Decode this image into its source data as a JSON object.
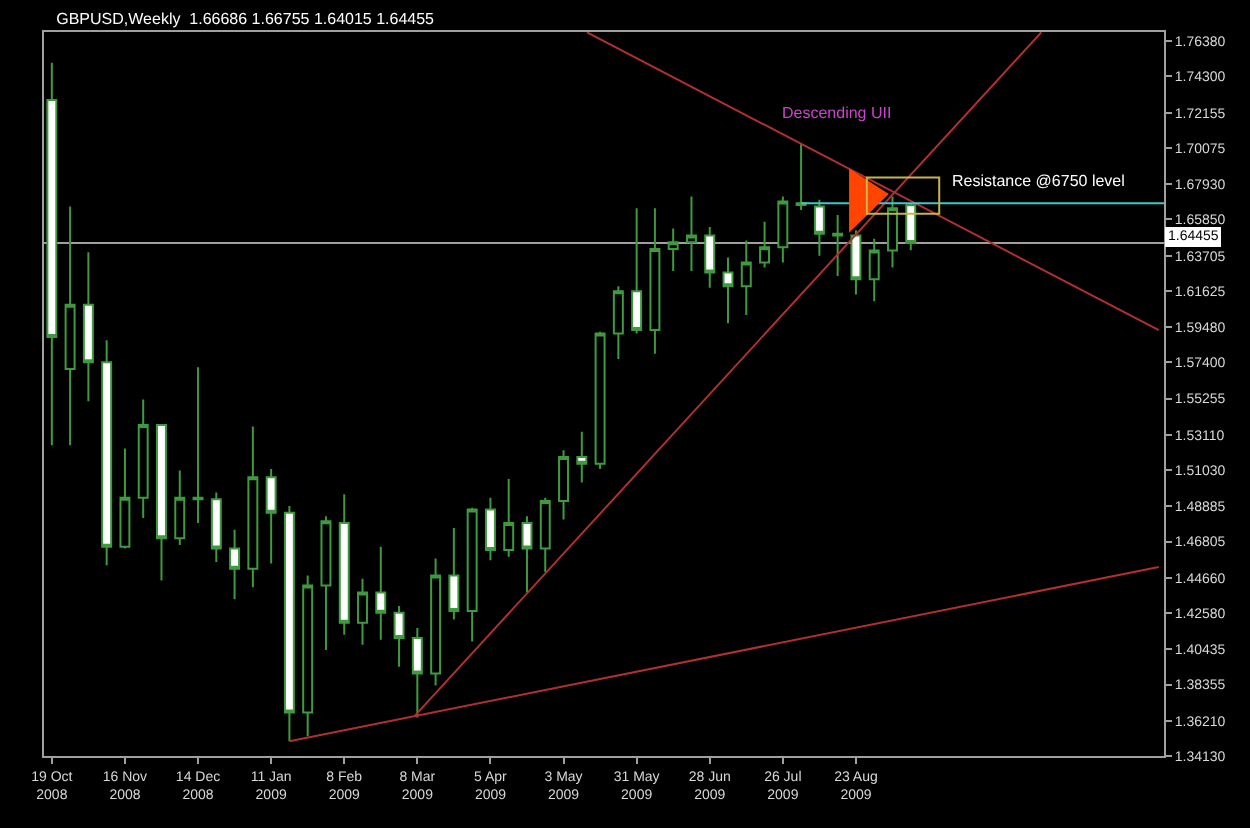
{
  "chart_data": {
    "type": "candlestick",
    "title": "GBPUSD,Weekly  1.66686 1.66755 1.64015 1.64455",
    "color": "#3f9a3f",
    "x": [
      "2008-10-19",
      "2008-10-26",
      "2008-11-02",
      "2008-11-09",
      "2008-11-16",
      "2008-11-23",
      "2008-11-30",
      "2008-12-07",
      "2008-12-14",
      "2008-12-21",
      "2008-12-28",
      "2009-01-04",
      "2009-01-11",
      "2009-01-18",
      "2009-01-25",
      "2009-02-01",
      "2009-02-08",
      "2009-02-15",
      "2009-02-22",
      "2009-03-01",
      "2009-03-08",
      "2009-03-15",
      "2009-03-22",
      "2009-03-29",
      "2009-04-05",
      "2009-04-12",
      "2009-04-19",
      "2009-04-26",
      "2009-05-03",
      "2009-05-10",
      "2009-05-17",
      "2009-05-24",
      "2009-05-31",
      "2009-06-07",
      "2009-06-14",
      "2009-06-21",
      "2009-06-28",
      "2009-07-05",
      "2009-07-12",
      "2009-07-19",
      "2009-07-26",
      "2009-08-02",
      "2009-08-09",
      "2009-08-16",
      "2009-08-23",
      "2009-08-30",
      "2009-09-06",
      "2009-09-13"
    ],
    "ohlc": [
      [
        1.729,
        1.751,
        1.525,
        1.589
      ],
      [
        1.57,
        1.666,
        1.525,
        1.608
      ],
      [
        1.608,
        1.639,
        1.551,
        1.574
      ],
      [
        1.574,
        1.587,
        1.454,
        1.465
      ],
      [
        1.465,
        1.523,
        1.464,
        1.494
      ],
      [
        1.494,
        1.552,
        1.482,
        1.537
      ],
      [
        1.537,
        1.537,
        1.445,
        1.47
      ],
      [
        1.47,
        1.51,
        1.466,
        1.494
      ],
      [
        1.493,
        1.571,
        1.479,
        1.494
      ],
      [
        1.493,
        1.497,
        1.456,
        1.464
      ],
      [
        1.464,
        1.475,
        1.434,
        1.452
      ],
      [
        1.452,
        1.536,
        1.441,
        1.506
      ],
      [
        1.506,
        1.511,
        1.455,
        1.485
      ],
      [
        1.485,
        1.489,
        1.35,
        1.367
      ],
      [
        1.367,
        1.448,
        1.353,
        1.442
      ],
      [
        1.442,
        1.483,
        1.404,
        1.48
      ],
      [
        1.479,
        1.496,
        1.413,
        1.42
      ],
      [
        1.42,
        1.446,
        1.407,
        1.438
      ],
      [
        1.438,
        1.465,
        1.41,
        1.426
      ],
      [
        1.426,
        1.43,
        1.394,
        1.411
      ],
      [
        1.411,
        1.417,
        1.364,
        1.39
      ],
      [
        1.39,
        1.458,
        1.383,
        1.448
      ],
      [
        1.448,
        1.476,
        1.422,
        1.427
      ],
      [
        1.427,
        1.488,
        1.409,
        1.487
      ],
      [
        1.487,
        1.494,
        1.457,
        1.463
      ],
      [
        1.463,
        1.505,
        1.459,
        1.479
      ],
      [
        1.479,
        1.483,
        1.438,
        1.464
      ],
      [
        1.464,
        1.494,
        1.45,
        1.492
      ],
      [
        1.492,
        1.522,
        1.481,
        1.518
      ],
      [
        1.518,
        1.533,
        1.503,
        1.514
      ],
      [
        1.514,
        1.592,
        1.511,
        1.591
      ],
      [
        1.591,
        1.619,
        1.576,
        1.616
      ],
      [
        1.616,
        1.665,
        1.591,
        1.593
      ],
      [
        1.593,
        1.665,
        1.579,
        1.641
      ],
      [
        1.641,
        1.653,
        1.628,
        1.645
      ],
      [
        1.645,
        1.672,
        1.628,
        1.649
      ],
      [
        1.649,
        1.654,
        1.618,
        1.627
      ],
      [
        1.627,
        1.636,
        1.597,
        1.619
      ],
      [
        1.619,
        1.646,
        1.602,
        1.633
      ],
      [
        1.633,
        1.657,
        1.63,
        1.642
      ],
      [
        1.642,
        1.672,
        1.633,
        1.669
      ],
      [
        1.667,
        1.703,
        1.664,
        1.668
      ],
      [
        1.666,
        1.67,
        1.637,
        1.65
      ],
      [
        1.649,
        1.661,
        1.625,
        1.65
      ],
      [
        1.649,
        1.652,
        1.614,
        1.623
      ],
      [
        1.623,
        1.647,
        1.61,
        1.64
      ],
      [
        1.64,
        1.672,
        1.63,
        1.665
      ],
      [
        1.66686,
        1.66755,
        1.64015,
        1.64455
      ]
    ],
    "series": [
      {
        "type": "line",
        "color": "#b03030",
        "x": [
          "2009-05-12",
          "2009-12-17"
        ],
        "values": [
          1.769,
          1.593
        ]
      },
      {
        "type": "line",
        "color": "#b03030",
        "x": [
          "2009-03-07",
          "2009-11-02"
        ],
        "values": [
          1.365,
          1.769
        ]
      },
      {
        "type": "line",
        "color": "#b03030",
        "x": [
          "2009-01-18",
          "2009-12-17"
        ],
        "values": [
          1.35,
          1.453
        ]
      },
      {
        "type": "line",
        "color": "#40c8c8",
        "x": [
          "2009-08-02",
          "2009-12-19"
        ],
        "values": [
          1.668,
          1.668
        ]
      }
    ],
    "ref_lines": [
      {
        "axis": "y",
        "value": 1.64455,
        "label": "1.64455",
        "color": "#a0a0a0"
      }
    ],
    "annotations": [
      "Descending UII",
      {
        "text": "Resistance @6750 level",
        "x": "2009-11-01",
        "y": 1.6735
      }
    ],
    "xlim": [
      "2008-10-16",
      "2009-12-19"
    ],
    "xticks": [
      {
        "value": "2008-10-19",
        "label": "19 Oct 2008"
      },
      {
        "value": "2008-11-16",
        "label": "16 Nov 2008"
      },
      {
        "value": "2008-12-14",
        "label": "14 Dec 2008"
      },
      {
        "value": "2009-01-11",
        "label": "11 Jan 2009"
      },
      {
        "value": "2009-02-08",
        "label": "8 Feb 2009"
      },
      {
        "value": "2009-03-08",
        "label": "8 Mar 2009"
      },
      {
        "value": "2009-04-05",
        "label": "5 Apr 2009"
      },
      {
        "value": "2009-05-03",
        "label": "3 May 2009"
      },
      {
        "value": "2009-05-31",
        "label": "31 May 2009"
      },
      {
        "value": "2009-06-28",
        "label": "28 Jun 2009"
      },
      {
        "value": "2009-07-26",
        "label": "26 Jul 2009"
      },
      {
        "value": "2009-08-23",
        "label": "23 Aug 2009"
      }
    ],
    "ylim": [
      1.3413,
      1.7692
    ],
    "yticks": [
      {
        "value": 1.7638,
        "label": "1.76380"
      },
      {
        "value": 1.743,
        "label": "1.74300"
      },
      1.72155,
      1.70075,
      {
        "value": 1.6793,
        "label": "1.67930"
      },
      {
        "value": 1.6585,
        "label": "1.65850"
      },
      1.63705,
      1.61625,
      {
        "value": 1.5948,
        "label": "1.59480"
      },
      {
        "value": 1.574,
        "label": "1.57400"
      },
      1.55255,
      {
        "value": 1.5311,
        "label": "1.53110"
      },
      {
        "value": 1.5103,
        "label": "1.51030"
      },
      1.48885,
      1.46805,
      {
        "value": 1.4466,
        "label": "1.44660"
      },
      {
        "value": 1.4258,
        "label": "1.42580"
      },
      1.40435,
      1.38355,
      {
        "value": 1.3621,
        "label": "1.36210"
      },
      {
        "value": 1.3413,
        "label": "1.34130"
      }
    ]
  }
}
